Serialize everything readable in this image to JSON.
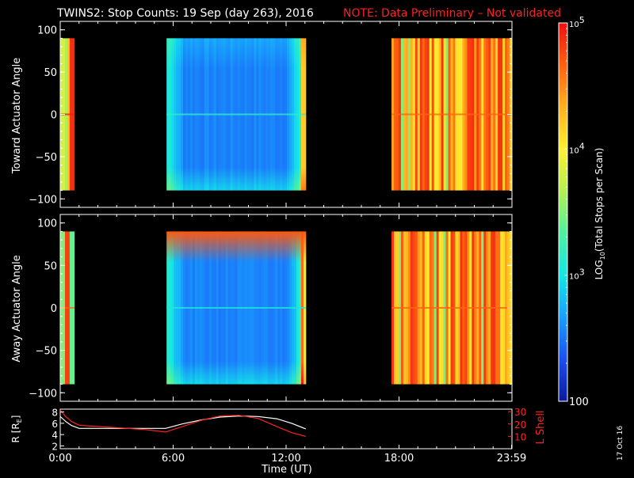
{
  "header": {
    "title": "TWINS2: Stop Counts: 19 Sep (day 263), 2016",
    "note": "NOTE: Data Preliminary – Not validated",
    "title_color": "#ffffff",
    "note_color": "#ff2020"
  },
  "side_label": "17 Oct 16",
  "chart_data": [
    {
      "type": "heatmap",
      "panel": "toward",
      "ylabel": "Toward Actuator Angle",
      "ylim": [
        -110,
        110
      ],
      "yticks": [
        100,
        50,
        0,
        -50,
        -100
      ],
      "ytick_labels": [
        "100",
        "50",
        "0",
        "−50",
        "−100"
      ],
      "xlim": [
        0,
        24
      ],
      "data_y_range": [
        -90,
        90
      ],
      "blocks": [
        {
          "t_start": 0.0,
          "t_end": 0.75,
          "dominant": "orange-red",
          "mean_log10": 4.6
        },
        {
          "t_start": 5.65,
          "t_end": 13.05,
          "dominant": "blue-cyan",
          "mean_log10": 2.8
        },
        {
          "t_start": 17.6,
          "t_end": 24.0,
          "dominant": "yellow-orange",
          "mean_log10": 4.3
        }
      ]
    },
    {
      "type": "heatmap",
      "panel": "away",
      "ylabel": "Away Actuator Angle",
      "ylim": [
        -110,
        110
      ],
      "yticks": [
        100,
        50,
        0,
        -50,
        -100
      ],
      "ytick_labels": [
        "100",
        "50",
        "0",
        "−50",
        "−100"
      ],
      "xlim": [
        0,
        24
      ],
      "data_y_range": [
        -90,
        90
      ],
      "blocks": [
        {
          "t_start": 0.0,
          "t_end": 0.75,
          "dominant": "orange-red/green",
          "mean_log10": 4.3
        },
        {
          "t_start": 5.65,
          "t_end": 13.05,
          "dominant": "blue-cyan",
          "mean_log10": 2.7
        },
        {
          "t_start": 17.6,
          "t_end": 24.0,
          "dominant": "yellow-orange",
          "mean_log10": 4.3
        }
      ]
    },
    {
      "type": "line",
      "panel": "orbit",
      "ylabel": "R [R",
      "ylabel_sub": "E",
      "ylabel_close": "]",
      "ylabel_right": "L Shell",
      "xlabel": "Time (UT)",
      "xlim": [
        0,
        24
      ],
      "xticks": [
        0,
        6,
        12,
        18,
        23.98
      ],
      "xtick_labels": [
        "0:00",
        "6:00",
        "12:00",
        "18:00",
        "23:59"
      ],
      "ylim": [
        1.5,
        8.5
      ],
      "yticks": [
        2,
        4,
        6,
        8
      ],
      "ytick_labels": [
        "2",
        "4",
        "6",
        "8"
      ],
      "ylim_right": [
        0,
        32
      ],
      "yticks_right": [
        10,
        20,
        30
      ],
      "ytick_labels_right": [
        "10",
        "20",
        "30"
      ],
      "series": [
        {
          "axis": "left",
          "color": "#ffffff",
          "x": [
            0,
            0.3,
            0.6,
            1.0,
            1.5,
            3,
            4.5,
            5.6,
            6.5,
            7.5,
            8.5,
            9.5,
            10.5,
            11.5,
            12.3,
            13.05
          ],
          "y": [
            7.2,
            6.3,
            5.6,
            5.1,
            5.1,
            5.1,
            5.1,
            5.1,
            5.9,
            6.6,
            7.1,
            7.3,
            7.2,
            6.8,
            6.0,
            5.0
          ]
        },
        {
          "axis": "right",
          "color": "#ff2020",
          "x": [
            0,
            0.3,
            0.6,
            1.0,
            1.5,
            3,
            4.5,
            5.6,
            6.5,
            7.5,
            8.5,
            9.5,
            10.5,
            11.5,
            12.3,
            13.05
          ],
          "y": [
            31,
            26,
            22,
            19,
            18.5,
            17,
            15.5,
            13.5,
            18,
            23,
            26.5,
            27,
            24.5,
            18,
            13,
            10
          ]
        }
      ]
    }
  ],
  "colorbar": {
    "label": "LOG10(Total Stops per Scan)",
    "label_prefix": "LOG",
    "label_sub": "10",
    "label_suffix": "(Total Stops per Scan)",
    "scale": "log",
    "range": [
      100,
      100000
    ],
    "ticks": [
      {
        "value": 100000,
        "base": "10",
        "exp": "5"
      },
      {
        "value": 10000,
        "base": "10",
        "exp": "4"
      },
      {
        "value": 1000,
        "base": "10",
        "exp": "3"
      },
      {
        "value": 100,
        "base": "100",
        "exp": ""
      }
    ],
    "colors": [
      "#0a1a9a",
      "#1d4ff0",
      "#18a0ff",
      "#14e6e6",
      "#50f0a0",
      "#b4f050",
      "#fff030",
      "#ffb020",
      "#ff6010",
      "#ee1010"
    ]
  }
}
